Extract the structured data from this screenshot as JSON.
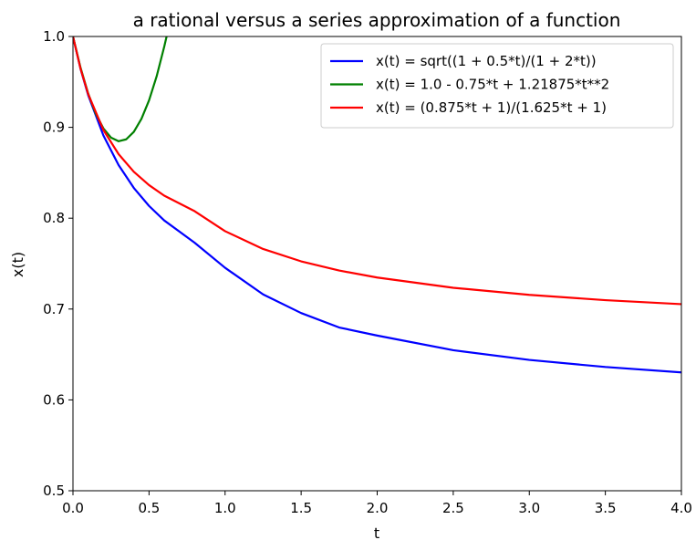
{
  "chart_data": {
    "type": "line",
    "title": "a rational versus a series approximation of a function",
    "xlabel": "t",
    "ylabel": "x(t)",
    "xlim": [
      0.0,
      4.0
    ],
    "ylim": [
      0.5,
      1.0
    ],
    "xticks": [
      "0.0",
      "0.5",
      "1.0",
      "1.5",
      "2.0",
      "2.5",
      "3.0",
      "3.5",
      "4.0"
    ],
    "yticks": [
      "0.5",
      "0.6",
      "0.7",
      "0.8",
      "0.9",
      "1.0"
    ],
    "grid": false,
    "legend_position": "top-right",
    "series": [
      {
        "name": "x(t) = sqrt((1 + 0.5*t)/(1 + 2*t))",
        "color": "#0000ff",
        "x": [
          0,
          0.05,
          0.1,
          0.2,
          0.3,
          0.4,
          0.5,
          0.6,
          0.8,
          1.0,
          1.25,
          1.5,
          1.75,
          2.0,
          2.5,
          3.0,
          3.5,
          4.0
        ],
        "y": [
          1.0,
          0.9642,
          0.9354,
          0.8911,
          0.8584,
          0.8333,
          0.8135,
          0.7975,
          0.773,
          0.7454,
          0.7161,
          0.6956,
          0.6797,
          0.6708,
          0.6547,
          0.644,
          0.6362,
          0.6303
        ]
      },
      {
        "name": "x(t) = 1.0 - 0.75*t + 1.21875*t**2",
        "color": "#008000",
        "x": [
          0,
          0.05,
          0.1,
          0.15,
          0.2,
          0.25,
          0.3,
          0.35,
          0.4,
          0.45,
          0.5,
          0.55,
          0.6,
          0.615
        ],
        "y": [
          1.0,
          0.9655,
          0.9372,
          0.9149,
          0.8988,
          0.8887,
          0.8847,
          0.8868,
          0.895,
          0.9093,
          0.9297,
          0.9561,
          0.9888,
          0.9996
        ]
      },
      {
        "name": "x(t) = (0.875*t + 1)/(1.625*t + 1)",
        "color": "#ff0000",
        "x": [
          0,
          0.05,
          0.1,
          0.2,
          0.3,
          0.4,
          0.5,
          0.6,
          0.8,
          1.0,
          1.25,
          1.5,
          1.75,
          2.0,
          2.5,
          3.0,
          3.5,
          4.0
        ],
        "y": [
          1.0,
          0.9644,
          0.9366,
          0.8971,
          0.8705,
          0.8511,
          0.8364,
          0.8248,
          0.8077,
          0.7857,
          0.7661,
          0.7525,
          0.7424,
          0.7347,
          0.7234,
          0.7156,
          0.7098,
          0.7054
        ]
      }
    ]
  }
}
